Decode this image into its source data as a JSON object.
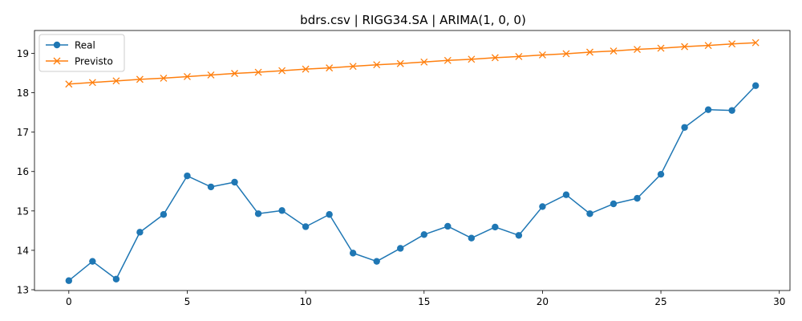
{
  "chart_data": {
    "type": "line",
    "title": "bdrs.csv | RIGG34.SA | ARIMA(1, 0, 0)",
    "xlabel": "",
    "ylabel": "",
    "xlim": [
      -1.45,
      30.45
    ],
    "ylim": [
      12.98,
      19.58
    ],
    "xticks": [
      0,
      5,
      10,
      15,
      20,
      25,
      30
    ],
    "yticks": [
      13,
      14,
      15,
      16,
      17,
      18,
      19
    ],
    "grid": false,
    "legend_position": "top-left",
    "x": [
      0,
      1,
      2,
      3,
      4,
      5,
      6,
      7,
      8,
      9,
      10,
      11,
      12,
      13,
      14,
      15,
      16,
      17,
      18,
      19,
      20,
      21,
      22,
      23,
      24,
      25,
      26,
      27,
      28,
      29
    ],
    "series": [
      {
        "name": "Real",
        "color": "#1f77b4",
        "marker": "circle",
        "values": [
          13.23,
          13.72,
          13.27,
          14.46,
          14.91,
          15.89,
          15.61,
          15.73,
          14.93,
          15.01,
          14.6,
          14.91,
          13.93,
          13.72,
          14.05,
          14.4,
          14.61,
          14.31,
          14.59,
          14.38,
          15.11,
          15.41,
          14.93,
          15.18,
          15.32,
          15.93,
          17.12,
          17.57,
          17.55,
          18.18
        ]
      },
      {
        "name": "Previsto",
        "color": "#ff7f0e",
        "marker": "x",
        "values": [
          18.22,
          18.26,
          18.3,
          18.34,
          18.37,
          18.41,
          18.45,
          18.49,
          18.52,
          18.56,
          18.6,
          18.63,
          18.67,
          18.71,
          18.74,
          18.78,
          18.82,
          18.85,
          18.89,
          18.92,
          18.96,
          18.99,
          19.03,
          19.06,
          19.1,
          19.13,
          19.17,
          19.2,
          19.24,
          19.27
        ]
      }
    ]
  }
}
